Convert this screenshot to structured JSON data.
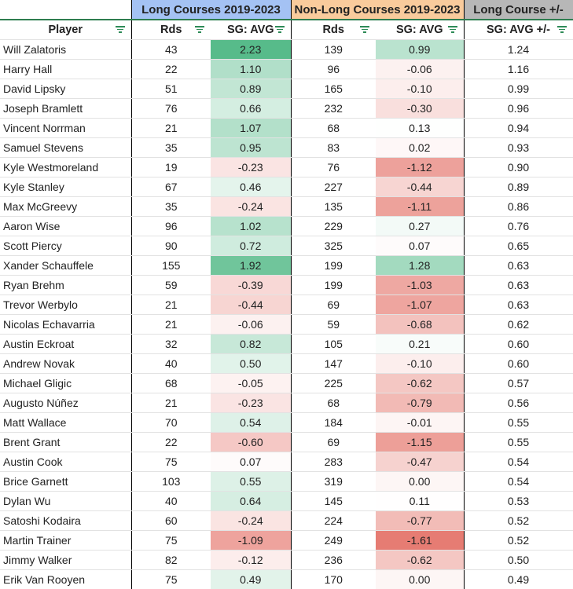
{
  "groups": {
    "long": "Long Courses 2019-2023",
    "nonlong": "Non-Long Courses 2019-2023",
    "diff": "Long Course +/-"
  },
  "group_colors": {
    "long": "#a4c2f4",
    "nonlong": "#f9cb9c",
    "diff": "#b7b7b7"
  },
  "columns": [
    "Player",
    "Rds",
    "SG: AVG",
    "Rds",
    "SG: AVG",
    "SG: AVG +/-"
  ],
  "icons": {
    "filter": "filter-icon"
  },
  "scale_colors": {
    "min": "#e67c73",
    "mid": "#ffffff",
    "max": "#57bb8a"
  },
  "rows": [
    [
      "Will Zalatoris",
      "43",
      "2.23",
      "139",
      "0.99",
      "1.24"
    ],
    [
      "Harry Hall",
      "22",
      "1.10",
      "96",
      "-0.06",
      "1.16"
    ],
    [
      "David Lipsky",
      "51",
      "0.89",
      "165",
      "-0.10",
      "0.99"
    ],
    [
      "Joseph Bramlett",
      "76",
      "0.66",
      "232",
      "-0.30",
      "0.96"
    ],
    [
      "Vincent Norrman",
      "21",
      "1.07",
      "68",
      "0.13",
      "0.94"
    ],
    [
      "Samuel Stevens",
      "35",
      "0.95",
      "83",
      "0.02",
      "0.93"
    ],
    [
      "Kyle Westmoreland",
      "19",
      "-0.23",
      "76",
      "-1.12",
      "0.90"
    ],
    [
      "Kyle Stanley",
      "67",
      "0.46",
      "227",
      "-0.44",
      "0.89"
    ],
    [
      "Max McGreevy",
      "35",
      "-0.24",
      "135",
      "-1.11",
      "0.86"
    ],
    [
      "Aaron Wise",
      "96",
      "1.02",
      "229",
      "0.27",
      "0.76"
    ],
    [
      "Scott Piercy",
      "90",
      "0.72",
      "325",
      "0.07",
      "0.65"
    ],
    [
      "Xander Schauffele",
      "155",
      "1.92",
      "199",
      "1.28",
      "0.63"
    ],
    [
      "Ryan Brehm",
      "59",
      "-0.39",
      "199",
      "-1.03",
      "0.63"
    ],
    [
      "Trevor Werbylo",
      "21",
      "-0.44",
      "69",
      "-1.07",
      "0.63"
    ],
    [
      "Nicolas Echavarria",
      "21",
      "-0.06",
      "59",
      "-0.68",
      "0.62"
    ],
    [
      "Austin Eckroat",
      "32",
      "0.82",
      "105",
      "0.21",
      "0.60"
    ],
    [
      "Andrew Novak",
      "40",
      "0.50",
      "147",
      "-0.10",
      "0.60"
    ],
    [
      "Michael Gligic",
      "68",
      "-0.05",
      "225",
      "-0.62",
      "0.57"
    ],
    [
      "Augusto Núñez",
      "21",
      "-0.23",
      "68",
      "-0.79",
      "0.56"
    ],
    [
      "Matt Wallace",
      "70",
      "0.54",
      "184",
      "-0.01",
      "0.55"
    ],
    [
      "Brent Grant",
      "22",
      "-0.60",
      "69",
      "-1.15",
      "0.55"
    ],
    [
      "Austin Cook",
      "75",
      "0.07",
      "283",
      "-0.47",
      "0.54"
    ],
    [
      "Brice Garnett",
      "103",
      "0.55",
      "319",
      "0.00",
      "0.54"
    ],
    [
      "Dylan Wu",
      "40",
      "0.64",
      "145",
      "0.11",
      "0.53"
    ],
    [
      "Satoshi Kodaira",
      "60",
      "-0.24",
      "224",
      "-0.77",
      "0.52"
    ],
    [
      "Martin Trainer",
      "75",
      "-1.09",
      "249",
      "-1.61",
      "0.52"
    ],
    [
      "Jimmy Walker",
      "82",
      "-0.12",
      "236",
      "-0.62",
      "0.50"
    ],
    [
      "Erik Van Rooyen",
      "75",
      "0.49",
      "170",
      "0.00",
      "0.49"
    ]
  ]
}
